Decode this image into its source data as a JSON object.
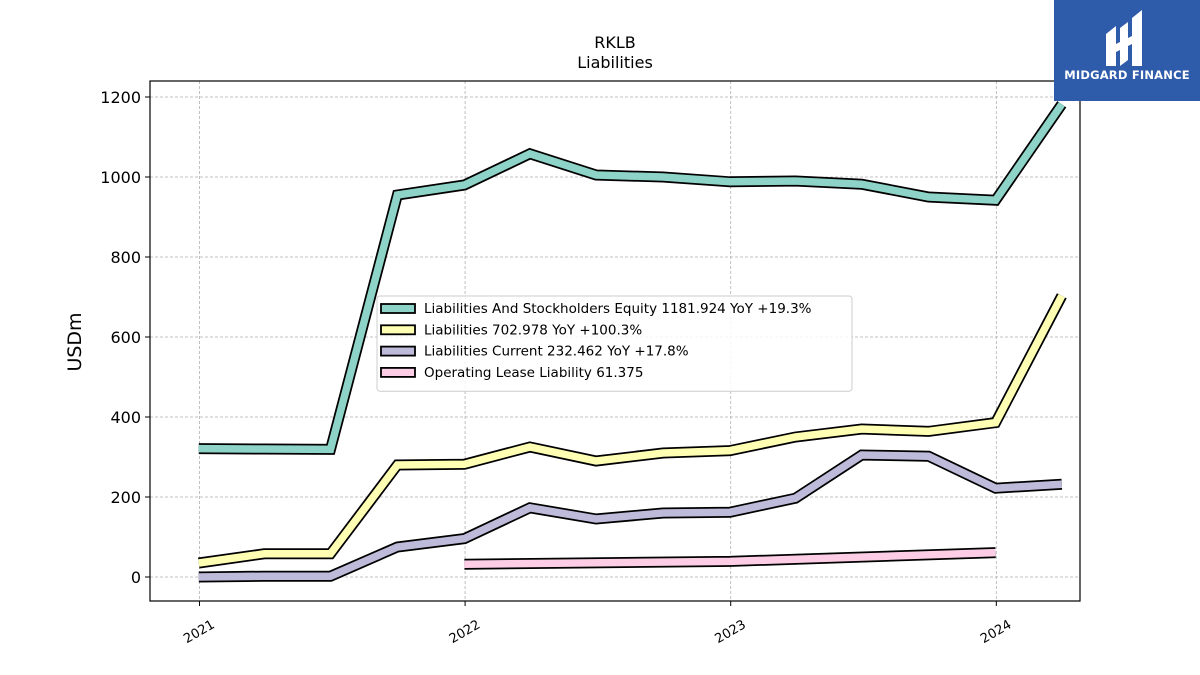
{
  "chart_data": {
    "type": "line",
    "title": "RKLB",
    "subtitle": "Liabilities",
    "ylabel": "USDm",
    "xlabel": "",
    "x_ticks": [
      "2021",
      "2022",
      "2023",
      "2024"
    ],
    "y_ticks": [
      "0",
      "200",
      "400",
      "600",
      "800",
      "1000",
      "1200"
    ],
    "ylim": [
      -60,
      1240
    ],
    "xlim": [
      "2020-10-25",
      "2024-04-25"
    ],
    "grid": true,
    "legend_position": "center",
    "series": [
      {
        "name": "Liabilities And Stockholders Equity",
        "legend": "Liabilities And Stockholders Equity  1181.924 YoY +19.3%",
        "color": "#8dd3c7",
        "points": [
          [
            "2020-12-31",
            321
          ],
          [
            "2021-03-31",
            320
          ],
          [
            "2021-06-30",
            319
          ],
          [
            "2021-09-30",
            955
          ],
          [
            "2021-12-31",
            980
          ],
          [
            "2022-03-31",
            1058
          ],
          [
            "2022-06-30",
            1005
          ],
          [
            "2022-09-30",
            1000
          ],
          [
            "2022-12-31",
            988
          ],
          [
            "2023-03-31",
            990
          ],
          [
            "2023-06-30",
            982
          ],
          [
            "2023-09-30",
            950
          ],
          [
            "2023-12-31",
            942
          ],
          [
            "2024-03-31",
            1182
          ]
        ]
      },
      {
        "name": "Liabilities",
        "legend": "Liabilities  702.978 YoY +100.3%",
        "color": "#ffffb3",
        "points": [
          [
            "2020-12-31",
            35
          ],
          [
            "2021-03-31",
            58
          ],
          [
            "2021-06-30",
            58
          ],
          [
            "2021-09-30",
            280
          ],
          [
            "2021-12-31",
            282
          ],
          [
            "2022-03-31",
            325
          ],
          [
            "2022-06-30",
            290
          ],
          [
            "2022-09-30",
            310
          ],
          [
            "2022-12-31",
            316
          ],
          [
            "2023-03-31",
            350
          ],
          [
            "2023-06-30",
            370
          ],
          [
            "2023-09-30",
            364
          ],
          [
            "2023-12-31",
            386
          ],
          [
            "2024-03-31",
            703
          ]
        ]
      },
      {
        "name": "Liabilities Current",
        "legend": "Liabilities Current  232.462 YoY +17.8%",
        "color": "#bebada",
        "points": [
          [
            "2020-12-31",
            0
          ],
          [
            "2021-03-31",
            2
          ],
          [
            "2021-06-30",
            2
          ],
          [
            "2021-09-30",
            75
          ],
          [
            "2021-12-31",
            96
          ],
          [
            "2022-03-31",
            173
          ],
          [
            "2022-06-30",
            145
          ],
          [
            "2022-09-30",
            160
          ],
          [
            "2022-12-31",
            162
          ],
          [
            "2023-03-31",
            197
          ],
          [
            "2023-06-30",
            305
          ],
          [
            "2023-09-30",
            302
          ],
          [
            "2023-12-31",
            222
          ],
          [
            "2024-03-31",
            232
          ]
        ]
      },
      {
        "name": "Operating Lease Liability",
        "legend": "Operating Lease Liability  61.375",
        "color": "#fccde5",
        "points": [
          [
            "2021-12-31",
            32
          ],
          [
            "2022-12-31",
            39
          ],
          [
            "2023-12-31",
            61
          ]
        ]
      }
    ]
  },
  "logo": {
    "text": "MIDGARD FINANCE",
    "background": "#2f5bab"
  }
}
